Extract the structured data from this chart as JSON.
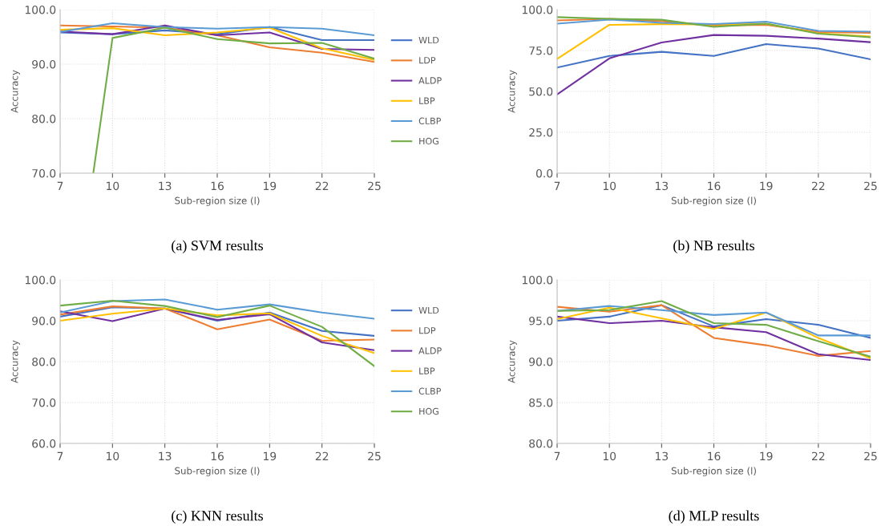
{
  "chart_data": [
    {
      "type": "line",
      "title": "(a) SVM results",
      "xlabel": "Sub-region size (l)",
      "ylabel": "Accuracy",
      "x": [
        7,
        10,
        13,
        16,
        19,
        22,
        25
      ],
      "xlim": [
        7,
        25
      ],
      "xticks": [
        7,
        10,
        13,
        16,
        19,
        22,
        25
      ],
      "ylim": [
        70,
        100
      ],
      "yticks": [
        {
          "value": 70,
          "label": "70.0"
        },
        {
          "value": 80,
          "label": "80.0"
        },
        {
          "value": 90,
          "label": "90.0"
        },
        {
          "value": 100,
          "label": "100.0"
        }
      ],
      "grid": true,
      "legend": "right",
      "marker": "none",
      "line_style": "solid",
      "series": [
        {
          "name": "WLD",
          "color": "#4472c4",
          "values": [
            95.8,
            95.5,
            96.2,
            95.5,
            96.8,
            94.4,
            94.4
          ]
        },
        {
          "name": "LDP",
          "color": "#ed7d31",
          "values": [
            97.1,
            96.9,
            96.7,
            95.3,
            93.1,
            92.1,
            90.4
          ]
        },
        {
          "name": "ALDP",
          "color": "#7030a0",
          "values": [
            96.0,
            95.5,
            97.1,
            95.3,
            95.8,
            92.8,
            92.6
          ]
        },
        {
          "name": "LBP",
          "color": "#ffc000",
          "values": [
            96.3,
            96.6,
            95.3,
            95.8,
            96.7,
            92.9,
            90.8
          ]
        },
        {
          "name": "CLBP",
          "color": "#5b9bd5",
          "values": [
            95.9,
            97.5,
            96.8,
            96.5,
            96.8,
            96.5,
            95.3
          ]
        },
        {
          "name": "HOG",
          "color": "#70ad47",
          "x": [
            8.9,
            10,
            13,
            16,
            19,
            22,
            25
          ],
          "values": [
            70,
            94.8,
            96.7,
            94.6,
            93.8,
            93.9,
            91.0
          ]
        }
      ]
    },
    {
      "type": "line",
      "title": "(b) NB results",
      "xlabel": "Sub-region size (l)",
      "ylabel": "Accuracy",
      "x": [
        7,
        10,
        13,
        16,
        19,
        22,
        25
      ],
      "xlim": [
        7,
        25
      ],
      "xticks": [
        7,
        10,
        13,
        16,
        19,
        22,
        25
      ],
      "ylim": [
        0,
        100
      ],
      "yticks": [
        {
          "value": 0,
          "label": "0.0"
        },
        {
          "value": 25,
          "label": "25.0"
        },
        {
          "value": 50,
          "label": "50.0"
        },
        {
          "value": 75,
          "label": "75.0"
        },
        {
          "value": 100,
          "label": "100.0"
        }
      ],
      "grid": true,
      "marker": "none",
      "line_style": "solid",
      "series": [
        {
          "color": "#4472c4",
          "values": [
            64.6,
            71.7,
            74.2,
            71.7,
            78.9,
            76.2,
            69.6
          ]
        },
        {
          "color": "#ed7d31",
          "values": [
            93.4,
            94.4,
            92.9,
            90.2,
            90.7,
            86.3,
            85.8
          ]
        },
        {
          "color": "#7030a0",
          "values": [
            48.2,
            70.2,
            79.9,
            84.5,
            84.0,
            82.3,
            80.1
          ]
        },
        {
          "color": "#ffc000",
          "values": [
            69.8,
            90.7,
            91.1,
            90.9,
            91.4,
            85.5,
            83.5
          ]
        },
        {
          "color": "#5b9bd5",
          "values": [
            91.4,
            93.9,
            91.9,
            91.2,
            92.6,
            87.0,
            86.5
          ]
        },
        {
          "color": "#70ad47",
          "values": [
            95.4,
            94.4,
            93.8,
            89.5,
            91.4,
            85.3,
            83.1
          ]
        }
      ]
    },
    {
      "type": "line",
      "title": "(c) KNN results",
      "xlabel": "Sub-region size (l)",
      "ylabel": "Accuracy",
      "x": [
        7,
        10,
        13,
        16,
        19,
        22,
        25
      ],
      "xlim": [
        7,
        25
      ],
      "xticks": [
        7,
        10,
        13,
        16,
        19,
        22,
        25
      ],
      "ylim": [
        60,
        100
      ],
      "yticks": [
        {
          "value": 60,
          "label": "60.0"
        },
        {
          "value": 70,
          "label": "70.0"
        },
        {
          "value": 80,
          "label": "80.0"
        },
        {
          "value": 90,
          "label": "90.0"
        },
        {
          "value": 100,
          "label": "100.0"
        }
      ],
      "grid": true,
      "legend": "right",
      "marker": "none",
      "line_style": "solid",
      "series": [
        {
          "name": "WLD",
          "color": "#4472c4",
          "values": [
            91.0,
            93.3,
            93.0,
            90.0,
            92.0,
            87.5,
            86.3
          ]
        },
        {
          "name": "LDP",
          "color": "#ed7d31",
          "values": [
            91.5,
            93.5,
            93.0,
            87.9,
            90.3,
            85.1,
            85.4
          ]
        },
        {
          "name": "ALDP",
          "color": "#7030a0",
          "values": [
            92.3,
            89.9,
            93.0,
            90.2,
            91.6,
            84.7,
            82.8
          ]
        },
        {
          "name": "LBP",
          "color": "#ffc000",
          "values": [
            90.0,
            91.7,
            93.0,
            91.3,
            91.8,
            86.3,
            82.1
          ]
        },
        {
          "name": "CLBP",
          "color": "#5b9bd5",
          "values": [
            92.0,
            94.8,
            95.2,
            92.7,
            94.0,
            92.0,
            90.5
          ]
        },
        {
          "name": "HOG",
          "color": "#70ad47",
          "values": [
            93.7,
            94.9,
            93.6,
            90.9,
            93.7,
            88.5,
            78.9
          ]
        }
      ]
    },
    {
      "type": "line",
      "title": "(d) MLP results",
      "xlabel": "Sub-region size (l)",
      "ylabel": "Accuracy",
      "x": [
        7,
        10,
        13,
        16,
        19,
        22,
        25
      ],
      "xlim": [
        7,
        25
      ],
      "xticks": [
        7,
        10,
        13,
        16,
        19,
        22,
        25
      ],
      "ylim": [
        80,
        100
      ],
      "yticks": [
        {
          "value": 80,
          "label": "80.0"
        },
        {
          "value": 85,
          "label": "85.0"
        },
        {
          "value": 90,
          "label": "90.0"
        },
        {
          "value": 95,
          "label": "95.0"
        },
        {
          "value": 100,
          "label": "100.0"
        }
      ],
      "grid": true,
      "marker": "none",
      "line_style": "solid",
      "series": [
        {
          "color": "#4472c4",
          "values": [
            95.0,
            95.5,
            96.9,
            94.3,
            95.2,
            94.5,
            92.9
          ]
        },
        {
          "color": "#ed7d31",
          "values": [
            96.7,
            96.1,
            96.9,
            92.9,
            92.0,
            90.7,
            91.3
          ]
        },
        {
          "color": "#7030a0",
          "values": [
            95.5,
            94.7,
            95.0,
            94.2,
            93.6,
            90.9,
            90.2
          ]
        },
        {
          "color": "#ffc000",
          "values": [
            95.2,
            96.6,
            95.3,
            94.0,
            96.0,
            92.9,
            90.4
          ]
        },
        {
          "color": "#5b9bd5",
          "values": [
            96.2,
            96.8,
            96.3,
            95.7,
            96.0,
            93.2,
            93.2
          ]
        },
        {
          "color": "#70ad47",
          "values": [
            96.2,
            96.3,
            97.4,
            94.7,
            94.5,
            92.5,
            90.6
          ]
        }
      ]
    }
  ]
}
